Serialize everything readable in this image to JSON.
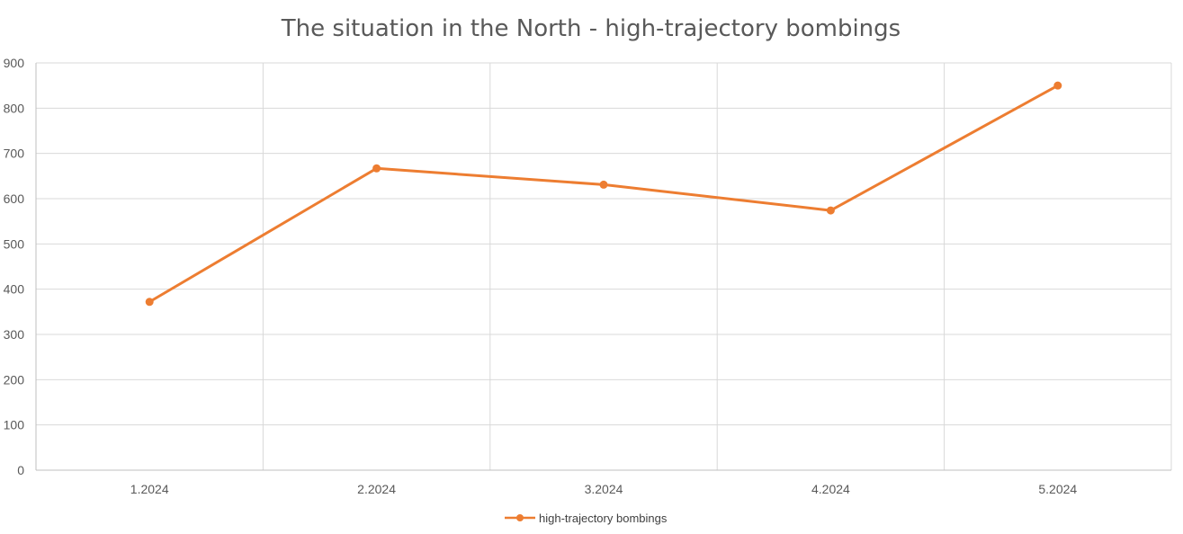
{
  "chart_data": {
    "type": "line",
    "title": "The situation in the North - high-trajectory bombings",
    "categories": [
      "1.2024",
      "2.2024",
      "3.2024",
      "4.2024",
      "5.2024"
    ],
    "series": [
      {
        "name": "high-trajectory bombings",
        "values": [
          372,
          667,
          631,
          574,
          850
        ],
        "color": "#ED7D31"
      }
    ],
    "ylim": [
      0,
      900
    ],
    "yticks": [
      0,
      100,
      200,
      300,
      400,
      500,
      600,
      700,
      800,
      900
    ],
    "xlabel": "",
    "ylabel": "",
    "grid": true,
    "legend_position": "bottom",
    "colors": {
      "gridline": "#D9D9D9",
      "axis": "#BFBFBF",
      "text": "#595959"
    }
  }
}
